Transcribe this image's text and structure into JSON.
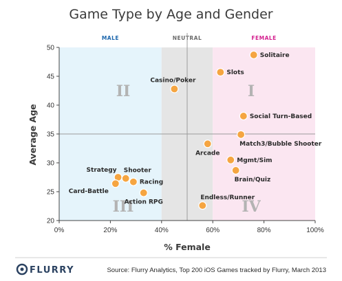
{
  "chart_data": {
    "type": "scatter",
    "title": "Game Type by Age and Gender",
    "xlabel": "% Female",
    "ylabel": "Average Age",
    "xlim": [
      0,
      100
    ],
    "ylim": [
      20,
      50
    ],
    "x_ticks": [
      "0%",
      "20%",
      "40%",
      "60%",
      "80%",
      "100%"
    ],
    "x_tick_values": [
      0,
      20,
      40,
      60,
      80,
      100
    ],
    "y_ticks": [
      "20",
      "25",
      "30",
      "35",
      "40",
      "45",
      "50"
    ],
    "y_tick_values": [
      20,
      25,
      30,
      35,
      40,
      45,
      50
    ],
    "grid": false,
    "reference_lines": {
      "x": 50,
      "y": 35
    },
    "zones": [
      {
        "label": "MALE",
        "from": 0,
        "to": 40,
        "color": "#e5f4fb",
        "text_color": "#1d67ad"
      },
      {
        "label": "NEUTRAL",
        "from": 40,
        "to": 60,
        "color": "#e5e5e5",
        "text_color": "#6b6b6b"
      },
      {
        "label": "FEMALE",
        "from": 60,
        "to": 100,
        "color": "#fbe6f1",
        "text_color": "#d4208f"
      }
    ],
    "quadrants": [
      {
        "label": "I",
        "x": 75,
        "y": 42.5
      },
      {
        "label": "II",
        "x": 25,
        "y": 42.5
      },
      {
        "label": "III",
        "x": 25,
        "y": 22.5
      },
      {
        "label": "IV",
        "x": 75,
        "y": 22.5
      }
    ],
    "marker_color": "#f5a541",
    "marker_stroke": "#ffffff",
    "points": [
      {
        "label": "Solitaire",
        "x": 76,
        "y": 48.7,
        "anchor": "right"
      },
      {
        "label": "Slots",
        "x": 63,
        "y": 45.7,
        "anchor": "right"
      },
      {
        "label": "Casino/Poker",
        "x": 45,
        "y": 42.8,
        "anchor": "top"
      },
      {
        "label": "Social Turn-Based",
        "x": 72,
        "y": 38.1,
        "anchor": "right"
      },
      {
        "label": "Match3/Bubble Shooter",
        "x": 71,
        "y": 34.9,
        "anchor": "below-right"
      },
      {
        "label": "Arcade",
        "x": 58,
        "y": 33.3,
        "anchor": "below"
      },
      {
        "label": "Mgmt/Sim",
        "x": 67,
        "y": 30.5,
        "anchor": "right"
      },
      {
        "label": "Brain/Quiz",
        "x": 69,
        "y": 28.7,
        "anchor": "below-right"
      },
      {
        "label": "Strategy",
        "x": 23,
        "y": 27.5,
        "anchor": "top-left"
      },
      {
        "label": "Shooter",
        "x": 26,
        "y": 27.3,
        "anchor": "top-right"
      },
      {
        "label": "Racing",
        "x": 29,
        "y": 26.7,
        "anchor": "right"
      },
      {
        "label": "Card-Battle",
        "x": 22,
        "y": 26.4,
        "anchor": "below-left"
      },
      {
        "label": "Action RPG",
        "x": 33,
        "y": 24.8,
        "anchor": "below"
      },
      {
        "label": "Endless/Runner",
        "x": 56,
        "y": 22.6,
        "anchor": "top-right"
      }
    ]
  },
  "footer": {
    "logo_text": "FLURRY",
    "source": "Source: Flurry Analytics, Top 200 iOS Games tracked by Flurry, March 2013"
  }
}
